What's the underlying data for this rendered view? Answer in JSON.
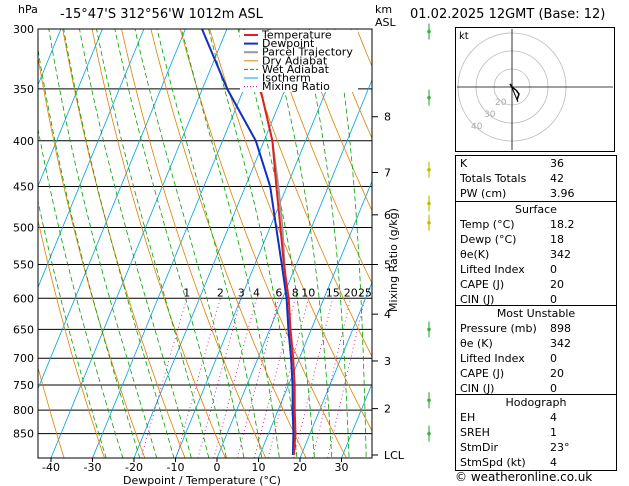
{
  "header": {
    "pressure_unit": "hPa",
    "location": "-15°47'S  312°56'W  1012m  ASL",
    "height_unit_km": "km",
    "height_unit_asl": "ASL",
    "date": "01.02.2025  12GMT  (Base: 12)"
  },
  "chart_data": {
    "type": "skew-t log-p",
    "xlabel": "Dewpoint / Temperature (°C)",
    "right_label": "Mixing Ratio (g/kg)",
    "pressure_levels": [
      300,
      350,
      400,
      450,
      500,
      550,
      600,
      650,
      700,
      750,
      800,
      850
    ],
    "temperature_ticks": [
      -40,
      -30,
      -20,
      -10,
      0,
      10,
      20,
      30
    ],
    "km_ticks": [
      {
        "label": "8",
        "p": 376
      },
      {
        "label": "7",
        "p": 434
      },
      {
        "label": "6",
        "p": 484
      },
      {
        "label": "5",
        "p": 550
      },
      {
        "label": "4",
        "p": 625
      },
      {
        "label": "3",
        "p": 705
      },
      {
        "label": "2",
        "p": 797
      },
      {
        "label": "LCL",
        "p": 898
      }
    ],
    "mixing_ratio_labels": [
      "1",
      "2",
      "3",
      "4",
      "6",
      "8",
      "10",
      "15",
      "20",
      "25"
    ],
    "mixing_ratio_values": [
      1,
      2,
      3,
      4,
      6,
      8,
      10,
      15,
      20,
      25
    ],
    "legend": [
      "Temperature",
      "Dewpoint",
      "Parcel Trajectory",
      "Dry Adiabat",
      "Wet Adiabat",
      "Isotherm",
      "Mixing Ratio"
    ],
    "temperature_profile": [
      {
        "p": 898,
        "t": 18.2
      },
      {
        "p": 850,
        "t": 16.5
      },
      {
        "p": 800,
        "t": 14.0
      },
      {
        "p": 750,
        "t": 11.5
      },
      {
        "p": 700,
        "t": 8.5
      },
      {
        "p": 650,
        "t": 5.0
      },
      {
        "p": 600,
        "t": 1.5
      },
      {
        "p": 550,
        "t": -3.0
      },
      {
        "p": 500,
        "t": -7.5
      },
      {
        "p": 450,
        "t": -12.5
      },
      {
        "p": 400,
        "t": -18.0
      },
      {
        "p": 350,
        "t": -26.0
      }
    ],
    "dewpoint_profile": [
      {
        "p": 898,
        "t": 18.0
      },
      {
        "p": 850,
        "t": 16.0
      },
      {
        "p": 800,
        "t": 13.5
      },
      {
        "p": 750,
        "t": 11.0
      },
      {
        "p": 700,
        "t": 8.0
      },
      {
        "p": 650,
        "t": 4.5
      },
      {
        "p": 600,
        "t": 1.0
      },
      {
        "p": 550,
        "t": -3.5
      },
      {
        "p": 500,
        "t": -8.5
      },
      {
        "p": 450,
        "t": -14.0
      },
      {
        "p": 400,
        "t": -22.0
      },
      {
        "p": 350,
        "t": -34.0
      },
      {
        "p": 300,
        "t": -46.0
      }
    ],
    "parcel_profile": [
      {
        "p": 898,
        "t": 18.2
      },
      {
        "p": 800,
        "t": 13.8
      },
      {
        "p": 700,
        "t": 8.0
      },
      {
        "p": 600,
        "t": 1.0
      },
      {
        "p": 500,
        "t": -7.0
      },
      {
        "p": 450,
        "t": -12.0
      },
      {
        "p": 400,
        "t": -18.0
      },
      {
        "p": 350,
        "t": -26.0
      },
      {
        "p": 300,
        "t": -36.0
      }
    ],
    "colors": {
      "temperature": "#e02020",
      "dewpoint": "#1030c0",
      "parcel": "#999999",
      "dry_adiabat": "#e08000",
      "wet_adiabat": "#00a000",
      "isotherm": "#00a0e0",
      "mixing_ratio": "#d000a0"
    }
  },
  "hodograph": {
    "label": "kt",
    "ring_labels": [
      "40",
      "30",
      "20"
    ]
  },
  "indices": {
    "top": [
      {
        "label": "K",
        "value": "36"
      },
      {
        "label": "Totals Totals",
        "value": "42"
      },
      {
        "label": "PW (cm)",
        "value": "3.96"
      }
    ],
    "surface_title": "Surface",
    "surface": [
      {
        "label": "Temp (°C)",
        "value": "18.2"
      },
      {
        "label": "Dewp (°C)",
        "value": "18"
      },
      {
        "label": "θe(K)",
        "value": "342"
      },
      {
        "label": "Lifted Index",
        "value": "0"
      },
      {
        "label": "CAPE (J)",
        "value": "20"
      },
      {
        "label": "CIN (J)",
        "value": "0"
      }
    ],
    "mu_title": "Most Unstable",
    "mu": [
      {
        "label": "Pressure (mb)",
        "value": "898"
      },
      {
        "label": "θe (K)",
        "value": "342"
      },
      {
        "label": "Lifted Index",
        "value": "0"
      },
      {
        "label": "CAPE (J)",
        "value": "20"
      },
      {
        "label": "CIN (J)",
        "value": "0"
      }
    ],
    "hodo_title": "Hodograph",
    "hodo": [
      {
        "label": "EH",
        "value": "4"
      },
      {
        "label": "SREH",
        "value": "1"
      },
      {
        "label": "StmDir",
        "value": "23°"
      },
      {
        "label": "StmSpd (kt)",
        "value": "4"
      }
    ]
  },
  "footer": "© weatheronline.co.uk"
}
